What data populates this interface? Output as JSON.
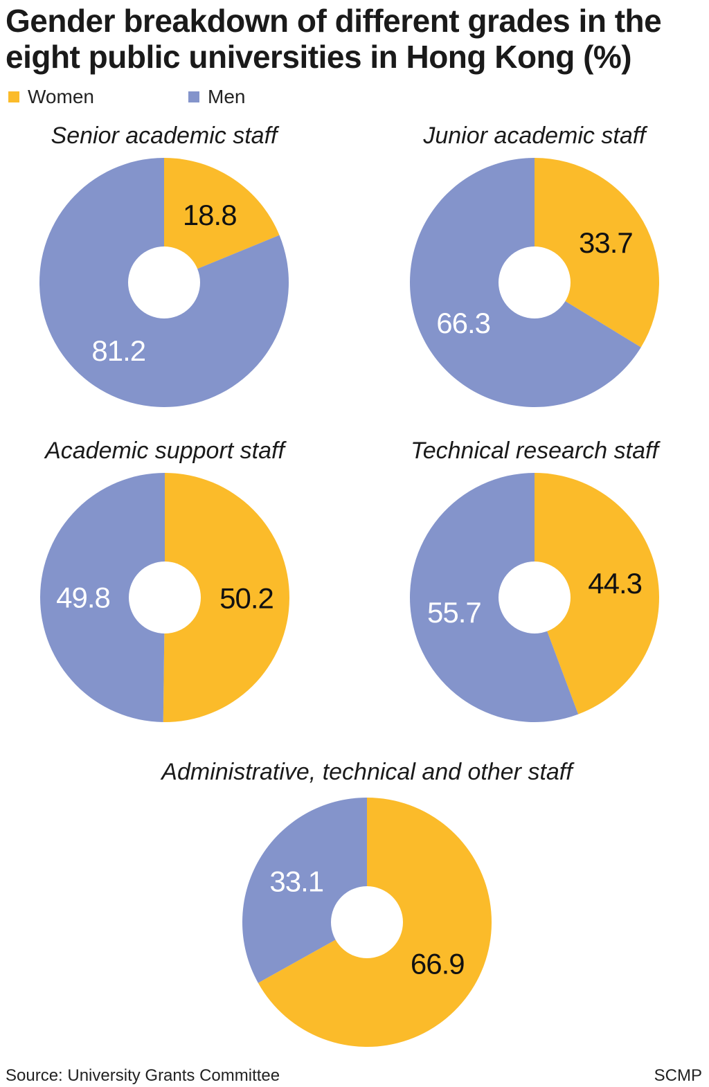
{
  "title": "Gender breakdown of different grades in the eight public universities in Hong Kong (%)",
  "legend": [
    {
      "label": "Women",
      "color": "#fbbb2a"
    },
    {
      "label": "Men",
      "color": "#8494cb"
    }
  ],
  "chart_data": [
    {
      "type": "pie",
      "title": "Senior academic staff",
      "labels": [
        "Women",
        "Men"
      ],
      "values": [
        18.8,
        81.2
      ]
    },
    {
      "type": "pie",
      "title": "Junior academic staff",
      "labels": [
        "Women",
        "Men"
      ],
      "values": [
        33.7,
        66.3
      ]
    },
    {
      "type": "pie",
      "title": "Academic support staff",
      "labels": [
        "Women",
        "Men"
      ],
      "values": [
        50.2,
        49.8
      ]
    },
    {
      "type": "pie",
      "title": "Technical research staff",
      "labels": [
        "Women",
        "Men"
      ],
      "values": [
        44.3,
        55.7
      ]
    },
    {
      "type": "pie",
      "title": "Administrative, technical and other staff",
      "labels": [
        "Women",
        "Men"
      ],
      "values": [
        66.9,
        33.1
      ]
    }
  ],
  "footer": {
    "source": "Source: University Grants Committee",
    "credit": "SCMP"
  }
}
